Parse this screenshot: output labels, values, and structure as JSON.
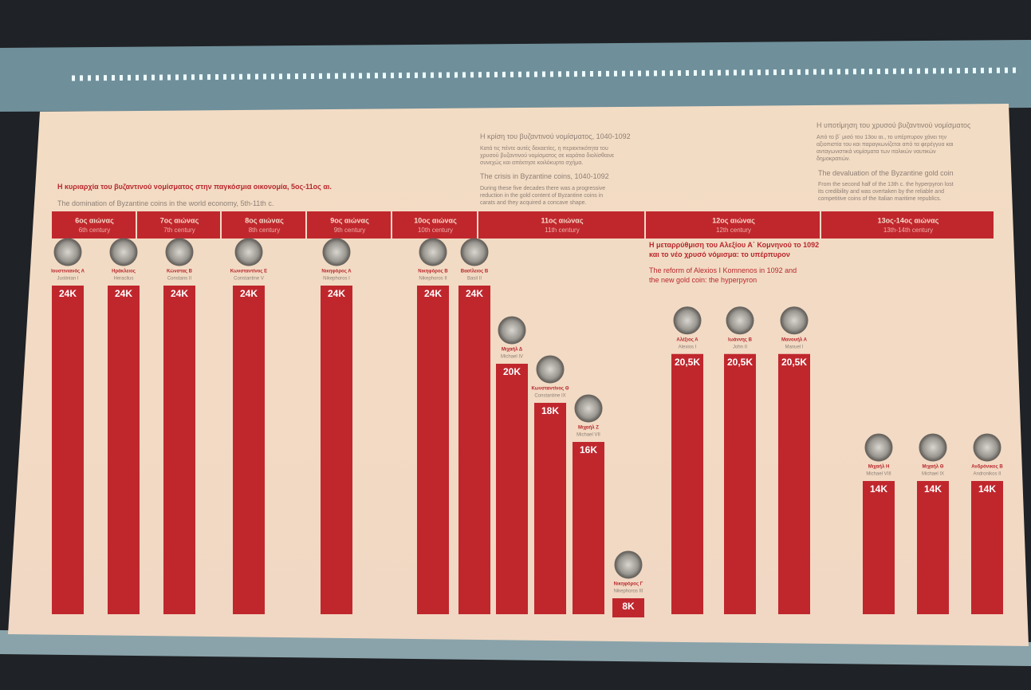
{
  "chart_data": {
    "type": "bar",
    "section_1": {
      "title_el": "Η κυριαρχία του βυζαντινού νομίσματος στην παγκόσμια οικονομία, 5ος-11ος αι.",
      "title_en": "The domination of Byzantine coins in the world economy, 5th-11th c."
    },
    "section_2": {
      "title_el": "Η κρίση του βυζαντινού νομίσματος, 1040-1092",
      "text_el": "Κατά τις πέντε αυτές δεκαετίες, η περιεκτικότητα του χρυσού βυζαντινού νομίσματος σε καράτια διολίσθαινε συνεχώς και απέκτησε κοιλόκυρτο σχήμα.",
      "title_en": "The crisis in Byzantine coins, 1040-1092",
      "text_en": "During these five decades there was a progressive reduction in the gold content of Byzantine coins in carats and they acquired a concave shape."
    },
    "section_3": {
      "title_el": "Η μεταρρύθμιση του Αλεξίου Α΄ Κομνηνού το 1092 και το νέο χρυσό νόμισμα: το υπέρπυρον",
      "title_en": "The reform of Alexios I Komnenos in 1092 and the new gold coin: the hyperpyron"
    },
    "section_4": {
      "title_el": "Η υποτίμηση του χρυσού βυζαντινού νομίσματος",
      "text_el": "Από το β΄ μισό του 13ου αι., το υπέρπυρον χάνει την αξιοπιστία του και παραγκωνίζεται από τα φερέγγυα και ανταγωνιστικά νομίσματα των ιταλικών ναυτικών δημοκρατιών.",
      "title_en": "The devaluation of the Byzantine gold coin",
      "text_en": "From the second half of the 13th c. the hyperpyron lost its credibility and was overtaken by the reliable and competitive coins of the Italian maritime republics."
    },
    "centuries_el": [
      "6ος αιώνας",
      "7ος αιώνας",
      "8ος αιώνας",
      "9ος αιώνας",
      "10ος αιώνας",
      "11ος αιώνας",
      "12ος αιώνας",
      "13ος-14ος αιώνας"
    ],
    "centuries_en": [
      "6th century",
      "7th century",
      "8th century",
      "9th century",
      "10th century",
      "11th century",
      "12th century",
      "13th-14th century"
    ],
    "categories": [
      "Ιουστινιανός Α",
      "Ηράκλειος",
      "Κώνστας Β",
      "Κωνσταντίνος Ε",
      "Νικηφόρος Α",
      "Νικηφόρος Β",
      "Βασίλειος Β",
      "Μιχαήλ Δ",
      "Κωνσταντίνος Θ",
      "Μιχαήλ Ζ",
      "Νικηφόρος Γ",
      "Αλέξιος Α",
      "Ιωάννης Β",
      "Μανουήλ Α",
      "Μιχαήλ Η",
      "Μιχαήλ Θ",
      "Ανδρόνικος Β"
    ],
    "categories_en": [
      "Justinian I",
      "Heraclius",
      "Constans II",
      "Constantine V",
      "Nikephoros I",
      "Nikephoros II",
      "Basil II",
      "Michael IV",
      "Constantine IX",
      "Michael VII",
      "Nikephoros III",
      "Alexios I",
      "John II",
      "Manuel I",
      "Michael VIII",
      "Michael IX",
      "Andronikos II"
    ],
    "values": [
      24,
      24,
      24,
      24,
      24,
      24,
      24,
      20,
      18,
      16,
      8,
      20.5,
      20.5,
      20.5,
      14,
      14,
      14
    ],
    "value_labels": [
      "24K",
      "24K",
      "24K",
      "24K",
      "24K",
      "24K",
      "24K",
      "20K",
      "18K",
      "16K",
      "8K",
      "20,5K",
      "20,5K",
      "20,5K",
      "14K",
      "14K",
      "14K"
    ],
    "color": "#c0272d"
  }
}
